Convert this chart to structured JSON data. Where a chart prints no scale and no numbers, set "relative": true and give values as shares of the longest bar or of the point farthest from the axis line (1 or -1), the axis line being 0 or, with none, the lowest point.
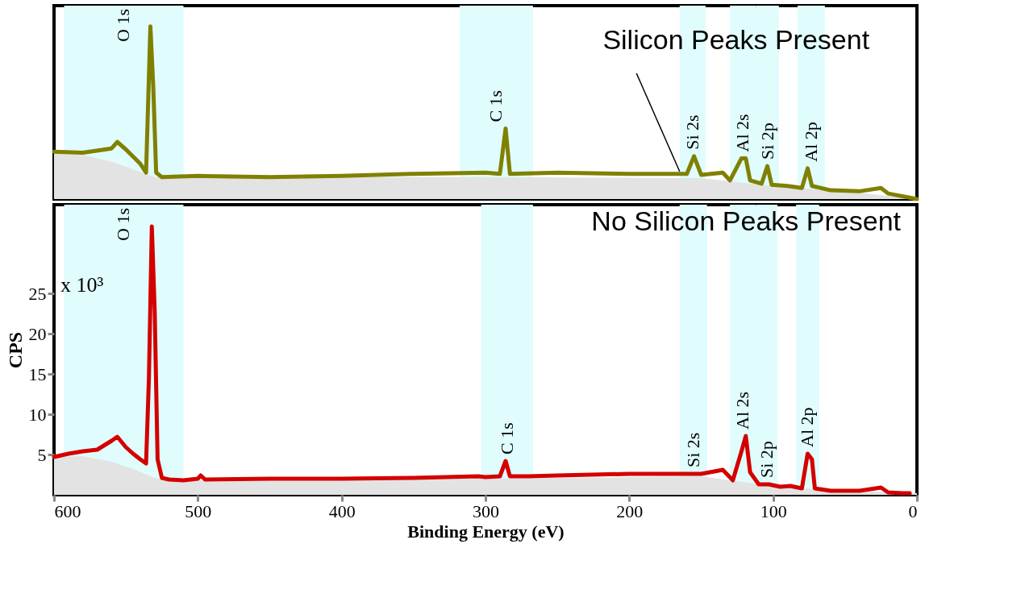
{
  "chart_data": [
    {
      "type": "line",
      "relative": true,
      "xlim": [
        600,
        0
      ],
      "xticks": [
        600,
        500,
        400,
        300,
        200,
        100,
        0
      ],
      "tick_labels": false,
      "grid": false,
      "bands": [
        {
          "axis": "x",
          "from": 593,
          "to": 510,
          "label": "O 1s",
          "color": "#e0fcfc"
        },
        {
          "axis": "x",
          "from": 318,
          "to": 267,
          "label": "C 1s",
          "color": "#e0fcfc"
        },
        {
          "axis": "x",
          "from": 165,
          "to": 147,
          "label": "Si 2s",
          "color": "#e0fcfc"
        },
        {
          "axis": "x",
          "from": 130,
          "to": 112,
          "label": "Al 2s",
          "color": "#e0fcfc"
        },
        {
          "axis": "x",
          "from": 112,
          "to": 96,
          "label": "Si 2p",
          "color": "#e0fcfc"
        },
        {
          "axis": "x",
          "from": 83,
          "to": 64,
          "label": "Al 2p",
          "color": "#e0fcfc"
        }
      ],
      "annotations": [
        {
          "text": "Silicon Peaks Present",
          "x": 165,
          "y": 0.16
        }
      ],
      "series": [
        {
          "type": "area",
          "color": "#e3e3e3",
          "x": [
            600,
            580,
            560,
            545,
            530,
            300,
            150,
            100,
            50,
            0
          ],
          "values": [
            0.268,
            0.255,
            0.217,
            0.172,
            0.127,
            0.127,
            0.121,
            0.076,
            0.045,
            0
          ]
        },
        {
          "color": "#808000",
          "x": [
            600,
            580,
            560,
            556,
            550,
            540,
            536,
            533,
            531,
            529,
            525,
            500,
            450,
            400,
            350,
            300,
            290,
            286,
            283,
            250,
            200,
            160,
            155,
            150,
            135,
            130,
            122,
            119,
            116,
            108,
            104,
            101,
            90,
            80,
            76,
            73,
            60,
            40,
            25,
            20,
            0
          ],
          "values": [
            0.274,
            0.268,
            0.293,
            0.331,
            0.287,
            0.204,
            0.153,
            1.0,
            0.65,
            0.153,
            0.127,
            0.134,
            0.127,
            0.134,
            0.146,
            0.153,
            0.146,
            0.408,
            0.146,
            0.153,
            0.146,
            0.146,
            0.248,
            0.14,
            0.153,
            0.108,
            0.236,
            0.236,
            0.108,
            0.089,
            0.191,
            0.083,
            0.076,
            0.064,
            0.178,
            0.076,
            0.051,
            0.045,
            0.064,
            0.032,
            0
          ]
        }
      ]
    },
    {
      "type": "line",
      "xlim": [
        600,
        0
      ],
      "xticks": [
        600,
        500,
        400,
        300,
        200,
        100,
        0
      ],
      "ylim": [
        0,
        36
      ],
      "yticks": [
        5,
        10,
        15,
        20,
        25
      ],
      "xlabel": "Binding Energy (eV)",
      "ylabel": "CPS",
      "grid": false,
      "bands": [
        {
          "axis": "x",
          "from": 593,
          "to": 510,
          "label": "O 1s",
          "color": "#e0fcfc"
        },
        {
          "axis": "x",
          "from": 303,
          "to": 267,
          "label": "C 1s",
          "color": "#e0fcfc"
        },
        {
          "axis": "x",
          "from": 165,
          "to": 146,
          "label": "Si 2s",
          "color": "#e0fcfc"
        },
        {
          "axis": "x",
          "from": 130,
          "to": 112,
          "label": "Al 2s",
          "color": "#e0fcfc"
        },
        {
          "axis": "x",
          "from": 112,
          "to": 97,
          "label": "Si 2p",
          "color": "#e0fcfc"
        },
        {
          "axis": "x",
          "from": 84,
          "to": 68,
          "label": "Al 2p",
          "color": "#e0fcfc"
        }
      ],
      "annotations": [
        "No Silicon Peaks Present",
        "x 10³"
      ],
      "series": [
        {
          "type": "area",
          "color": "#e3e3e3",
          "x": [
            600,
            580,
            560,
            545,
            530,
            520,
            500,
            400,
            300,
            200,
            150,
            130,
            100,
            70,
            0
          ],
          "values": [
            4.7,
            4.8,
            4.1,
            3.2,
            2.1,
            1.8,
            1.8,
            1.9,
            2.0,
            2.2,
            2.3,
            1.8,
            1.1,
            0.7,
            0.2
          ]
        },
        {
          "color": "#d40000",
          "x": [
            600,
            590,
            580,
            570,
            560,
            556,
            550,
            545,
            540,
            536,
            534,
            532,
            530,
            528,
            525,
            520,
            510,
            500,
            498,
            495,
            450,
            400,
            350,
            305,
            300,
            290,
            286,
            283,
            270,
            250,
            200,
            150,
            135,
            128,
            122,
            119,
            116,
            110,
            103,
            95,
            88,
            80,
            76,
            73,
            71,
            60,
            40,
            25,
            20,
            10,
            5
          ],
          "values": [
            4.7,
            5.1,
            5.4,
            5.6,
            6.7,
            7.2,
            5.9,
            5.1,
            4.4,
            3.9,
            14.6,
            33.3,
            22.8,
            4.4,
            2.1,
            1.9,
            1.8,
            2.0,
            2.4,
            1.9,
            2.0,
            2.0,
            2.1,
            2.3,
            2.2,
            2.3,
            4.2,
            2.3,
            2.3,
            2.4,
            2.6,
            2.6,
            3.1,
            1.8,
            5.4,
            7.3,
            2.8,
            1.3,
            1.3,
            1.0,
            1.1,
            0.8,
            5.1,
            4.4,
            0.8,
            0.5,
            0.5,
            0.9,
            0.3,
            0.2,
            0.2
          ]
        }
      ]
    }
  ]
}
